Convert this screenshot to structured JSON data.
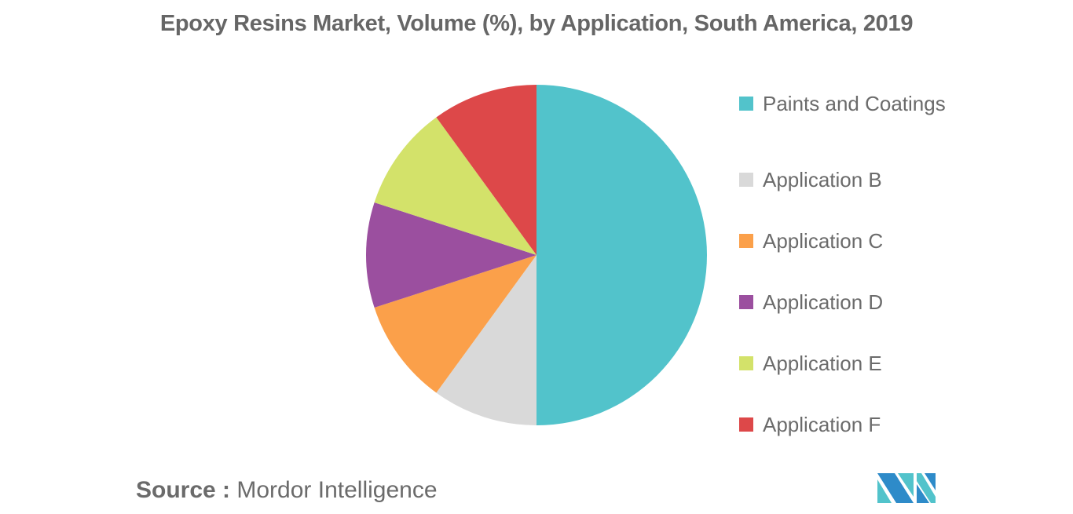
{
  "title": "Epoxy Resins Market, Volume (%), by Application, South America, 2019",
  "legend": [
    {
      "label": "Paints and Coatings",
      "color": "#52C3CB"
    },
    {
      "label": "Application B",
      "color": "#D9D9D9"
    },
    {
      "label": "Application C",
      "color": "#FBA04A"
    },
    {
      "label": "Application D",
      "color": "#9B4F9F"
    },
    {
      "label": "Application E",
      "color": "#D3E26A"
    },
    {
      "label": "Application F",
      "color": "#DD4849"
    }
  ],
  "source": {
    "key": "Source :",
    "value": "Mordor Intelligence"
  },
  "logo": {
    "name": "Mordor Intelligence logo",
    "colors": [
      "#2E8BC9",
      "#52C3CB"
    ]
  },
  "chart_data": {
    "type": "pie",
    "title": "Epoxy Resins Market, Volume (%), by Application, South America, 2019",
    "categories": [
      "Paints and Coatings",
      "Application B",
      "Application C",
      "Application D",
      "Application E",
      "Application F"
    ],
    "values": [
      50,
      10,
      10,
      10,
      10,
      10
    ],
    "colors": [
      "#52C3CB",
      "#D9D9D9",
      "#FBA04A",
      "#9B4F9F",
      "#D3E26A",
      "#DD4849"
    ],
    "start_angle_deg": 0,
    "direction": "clockwise from 12 o'clock",
    "legend_position": "right",
    "data_labels": false,
    "source": "Mordor Intelligence"
  }
}
